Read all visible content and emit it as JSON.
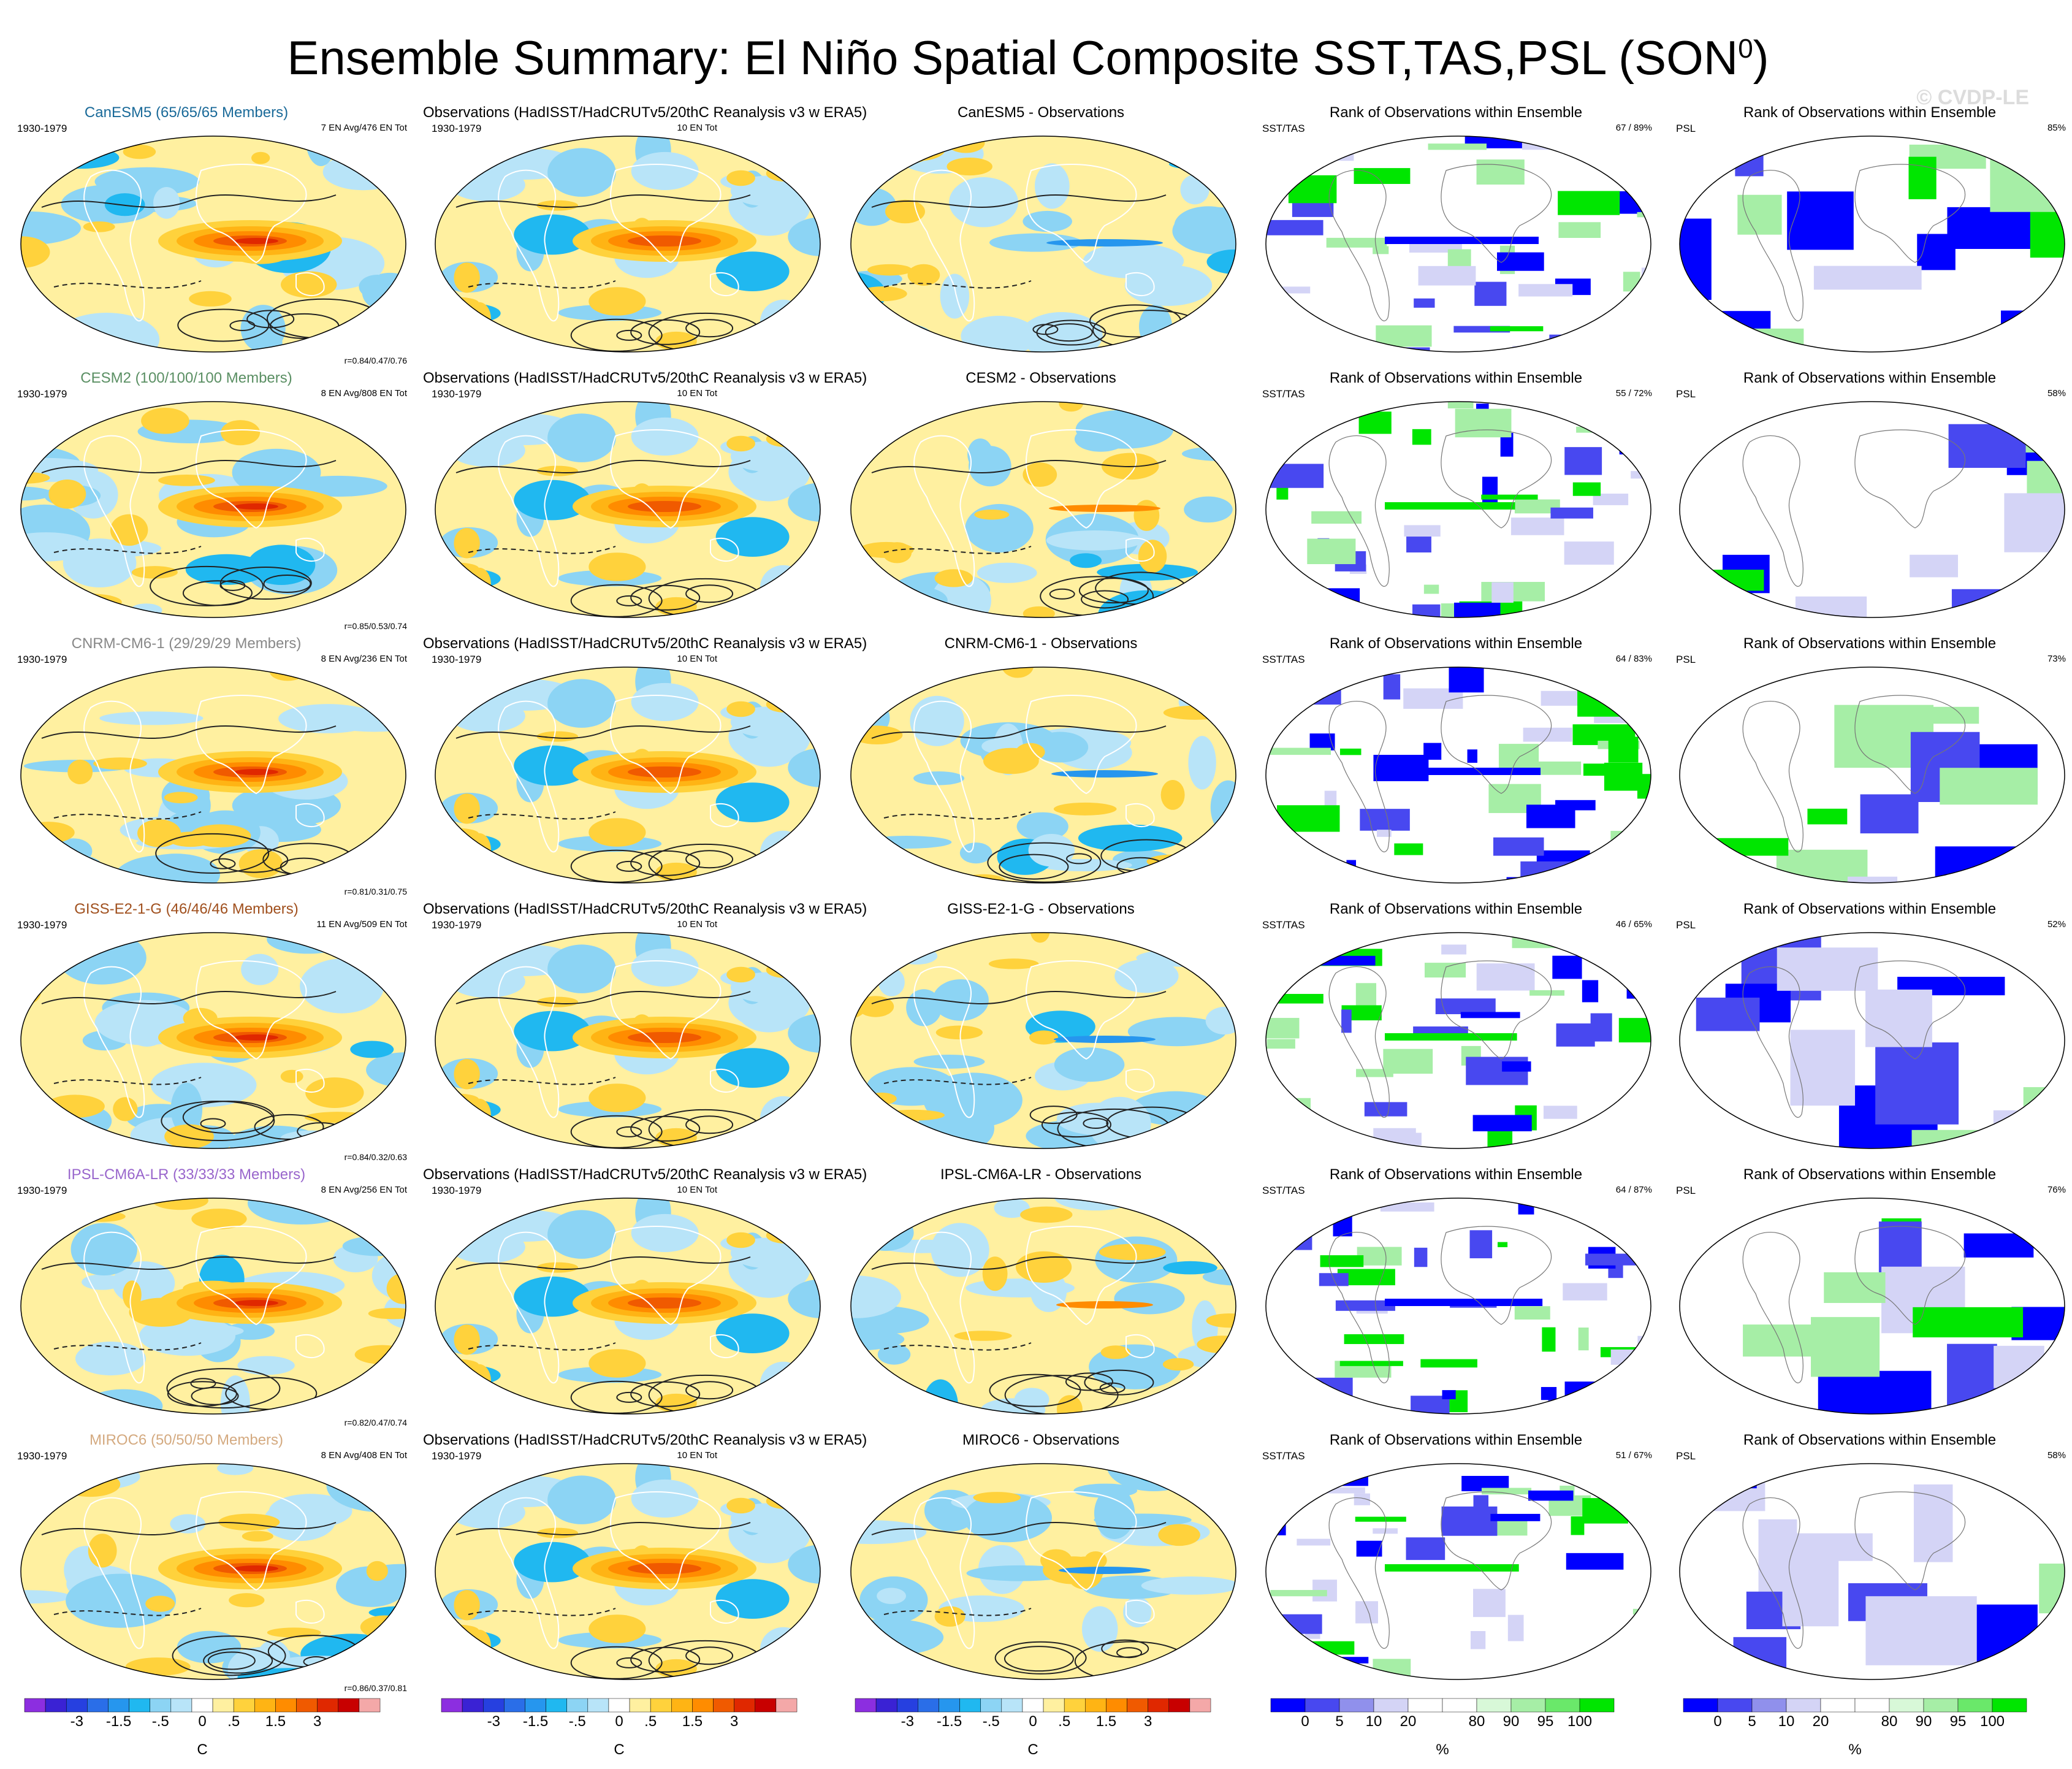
{
  "title": {
    "text": "Ensemble Summary: El Niño Spatial Composite SST,TAS,PSL (SON",
    "sup": "0",
    "close": ")"
  },
  "watermark": "© CVDP-LE",
  "common": {
    "period": "1930-1979",
    "obs_title": "Observations (HadISST/HadCRUTv5/20thC Reanalysis v3 w ERA5)",
    "obs_info": "10 EN Tot",
    "rank_title": "Rank of Observations within Ensemble",
    "sst_label": "SST/TAS",
    "psl_label": "PSL"
  },
  "rows": [
    {
      "model": "CanESM5",
      "members": "CanESM5 (65/65/65 Members)",
      "color": "#1a6a99",
      "info": "7 EN Avg/476 EN Tot",
      "stat": "r=0.84/0.47/0.76",
      "diff_title": "CanESM5 - Observations",
      "rank_sst": "67 /  89%",
      "rank_psl": "85%"
    },
    {
      "model": "CESM2",
      "members": "CESM2 (100/100/100 Members)",
      "color": "#5a8f63",
      "info": "8 EN Avg/808 EN Tot",
      "stat": "r=0.85/0.53/0.74",
      "diff_title": "CESM2 - Observations",
      "rank_sst": "55 /  72%",
      "rank_psl": "58%"
    },
    {
      "model": "CNRM-CM6-1",
      "members": "CNRM-CM6-1 (29/29/29 Members)",
      "color": "#888888",
      "info": "8 EN Avg/236 EN Tot",
      "stat": "r=0.81/0.31/0.75",
      "diff_title": "CNRM-CM6-1 - Observations",
      "rank_sst": "64 /  83%",
      "rank_psl": "73%"
    },
    {
      "model": "GISS-E2-1-G",
      "members": "GISS-E2-1-G (46/46/46 Members)",
      "color": "#a0501e",
      "info": "11 EN Avg/509 EN Tot",
      "stat": "r=0.84/0.32/0.63",
      "diff_title": "GISS-E2-1-G - Observations",
      "rank_sst": "46 /  65%",
      "rank_psl": "52%"
    },
    {
      "model": "IPSL-CM6A-LR",
      "members": "IPSL-CM6A-LR (33/33/33 Members)",
      "color": "#9966cc",
      "info": "8 EN Avg/256 EN Tot",
      "stat": "r=0.82/0.47/0.74",
      "diff_title": "IPSL-CM6A-LR - Observations",
      "rank_sst": "64 /  87%",
      "rank_psl": "76%"
    },
    {
      "model": "MIROC6",
      "members": "MIROC6 (50/50/50 Members)",
      "color": "#d4aa80",
      "info": "8 EN Avg/408 EN Tot",
      "stat": "r=0.86/0.37/0.81",
      "diff_title": "MIROC6 - Observations",
      "rank_sst": "51 /  67%",
      "rank_psl": "58%"
    }
  ],
  "chart_data": {
    "type": "heatmap",
    "layout": "6 rows (models) x 5 columns (model composite, observations, difference, SST/TAS rank, PSL rank)",
    "temperature_colorbar": {
      "unit": "C",
      "tick_labels": [
        "-3",
        "-1.5",
        "-.5",
        "0",
        ".5",
        "1.5",
        "3"
      ],
      "colors": [
        "#8c2ee0",
        "#3a22d4",
        "#2640e0",
        "#2a6ee8",
        "#2696ee",
        "#20b8f0",
        "#8cd4f4",
        "#b8e4f8",
        "#ffffff",
        "#fff0a0",
        "#ffd23c",
        "#ffb414",
        "#ff8c00",
        "#f05a00",
        "#e02800",
        "#c80000",
        "#f4a8a8"
      ]
    },
    "rank_colorbar": {
      "unit": "%",
      "tick_labels": [
        "0",
        "5",
        "10",
        "20",
        "80",
        "90",
        "95",
        "100"
      ],
      "colors": [
        "#0000ff",
        "#4848f0",
        "#9090ec",
        "#d4d4f6",
        "#ffffff",
        "#ffffff",
        "#d8f8d8",
        "#a6eea6",
        "#6ae86a",
        "#00e600"
      ]
    },
    "features": {
      "composite": "warm anomaly tongue along equatorial Pacific (>1.5 C), cool horseshoe in western Pacific, black SLP contours",
      "rank": "blue = obs below ensemble, green = obs above ensemble"
    }
  }
}
